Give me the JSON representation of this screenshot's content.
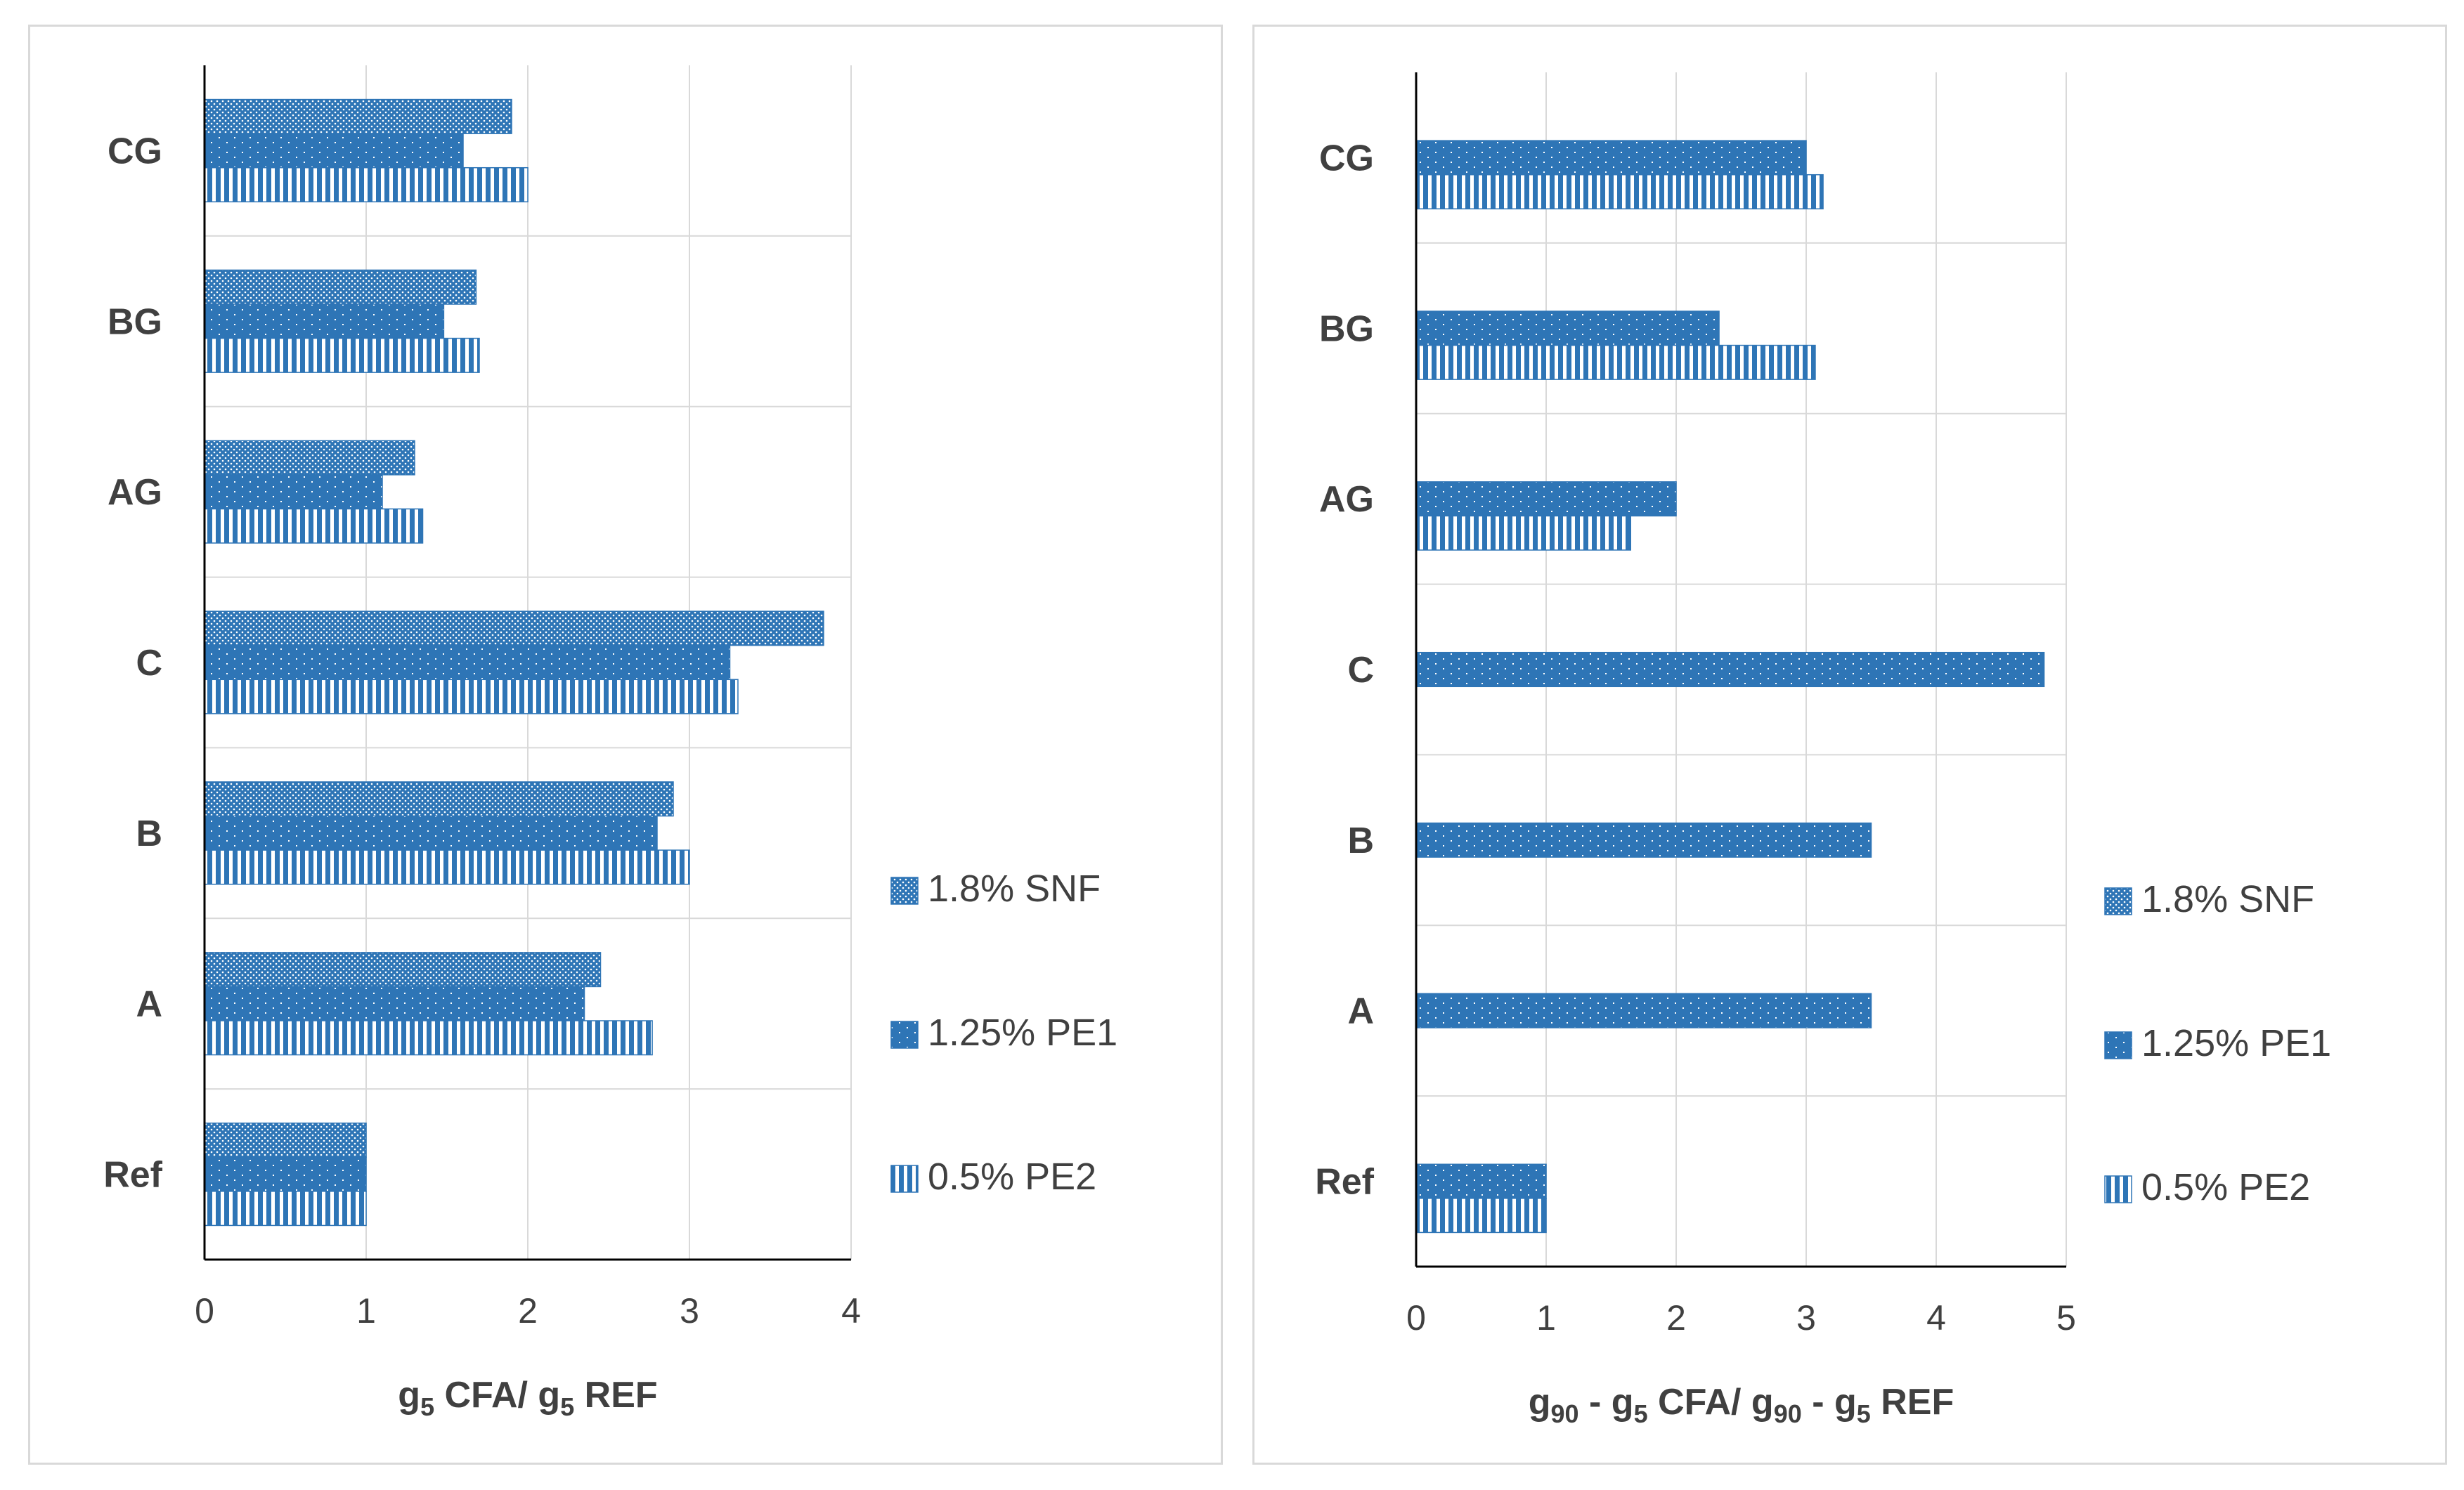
{
  "colors": {
    "bar": "#2e75b6",
    "grid": "#d9d9d9",
    "axis": "#000000",
    "text": "#404040"
  },
  "chart_data": [
    {
      "type": "bar",
      "orientation": "horizontal",
      "categories": [
        "CG",
        "BG",
        "AG",
        "C",
        "B",
        "A",
        "Ref"
      ],
      "series": [
        {
          "name": "1.8% SNF",
          "pattern": "dots",
          "values": [
            1.9,
            1.68,
            1.3,
            3.83,
            2.9,
            2.45,
            1.0
          ]
        },
        {
          "name": "1.25% PE1",
          "pattern": "dashed",
          "values": [
            1.6,
            1.48,
            1.1,
            3.25,
            2.8,
            2.35,
            1.0
          ]
        },
        {
          "name": "0.5% PE2",
          "pattern": "stripes",
          "values": [
            2.0,
            1.7,
            1.35,
            3.3,
            3.0,
            2.77,
            1.0
          ]
        }
      ],
      "xlim": [
        0,
        4
      ],
      "xticks": [
        "0",
        "1",
        "2",
        "3",
        "4"
      ],
      "xlabel_parts": [
        "g",
        "5",
        " CFA/ g",
        "5",
        " REF"
      ],
      "grid": true,
      "legend": "right"
    },
    {
      "type": "bar",
      "orientation": "horizontal",
      "categories": [
        "CG",
        "BG",
        "AG",
        "C",
        "B",
        "A",
        "Ref"
      ],
      "series": [
        {
          "name": "1.8% SNF",
          "pattern": "dots",
          "values": [
            null,
            null,
            null,
            null,
            null,
            null,
            null
          ]
        },
        {
          "name": "1.25% PE1",
          "pattern": "dashed",
          "values": [
            3.0,
            2.33,
            2.0,
            4.83,
            3.5,
            3.5,
            1.0
          ]
        },
        {
          "name": "0.5% PE2",
          "pattern": "stripes",
          "values": [
            3.13,
            3.07,
            1.65,
            null,
            null,
            null,
            1.0
          ]
        }
      ],
      "xlim": [
        0,
        5
      ],
      "xticks": [
        "0",
        "1",
        "2",
        "3",
        "4",
        "5"
      ],
      "xlabel_parts": [
        "g",
        "90",
        " - g",
        "5",
        " CFA/ g",
        "90",
        " - g",
        "5",
        " REF"
      ],
      "grid": true,
      "legend": "right"
    }
  ]
}
